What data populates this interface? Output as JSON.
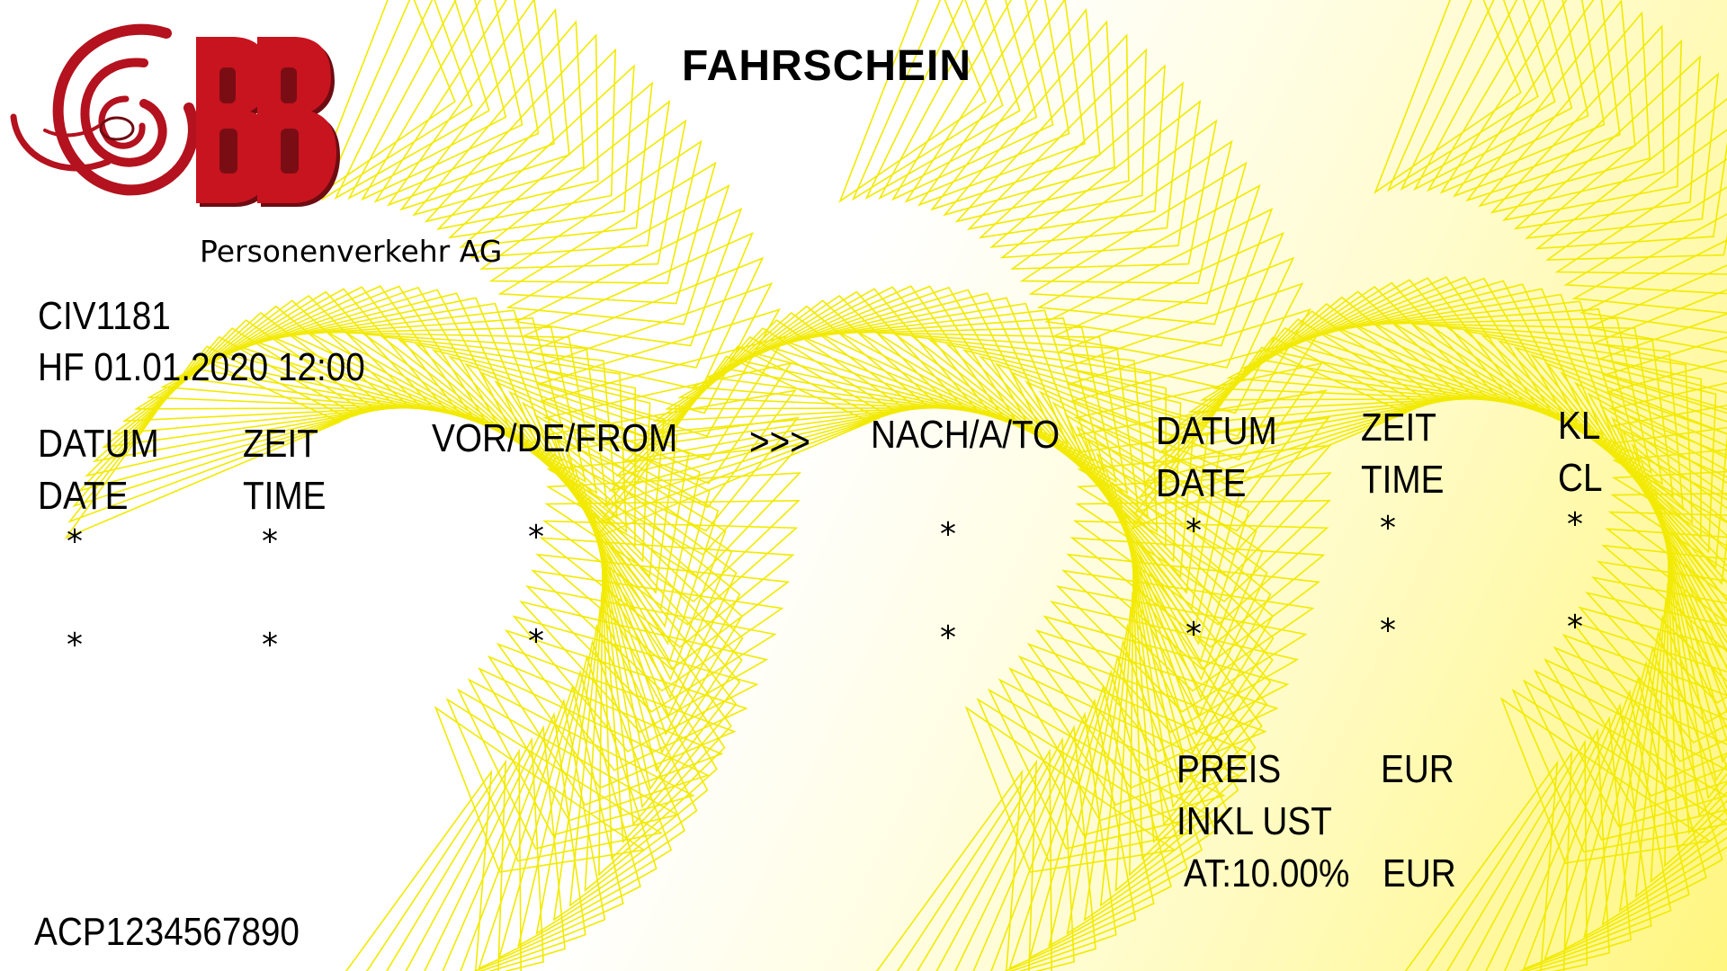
{
  "ticket": {
    "title": "FAHRSCHEIN",
    "logo": {
      "text": "ÖBB",
      "subtitle": "Personenverkehr AG"
    },
    "code": "CIV1181",
    "issued": "HF 01.01.2020 12:00",
    "serial": "ACP1234567890"
  },
  "headers": {
    "datum1": "DATUM",
    "date1": "DATE",
    "zeit1": "ZEIT",
    "time1": "TIME",
    "from": "VOR/DE/FROM",
    "arrow": ">>>",
    "to": "NACH/A/TO",
    "datum2": "DATUM",
    "date2": "DATE",
    "zeit2": "ZEIT",
    "time2": "TIME",
    "kl": "KL",
    "cl": "CL"
  },
  "placeholder": "*",
  "price": {
    "preis": "PREIS",
    "currency1": "EUR",
    "inkl": "INKL UST",
    "vat": "AT:10.00%",
    "currency2": "EUR"
  },
  "colors": {
    "pattern": "#f2ea00",
    "logo_red": "#b3121e",
    "logo_dark": "#6e0c12",
    "background_accent": "#fff680"
  }
}
